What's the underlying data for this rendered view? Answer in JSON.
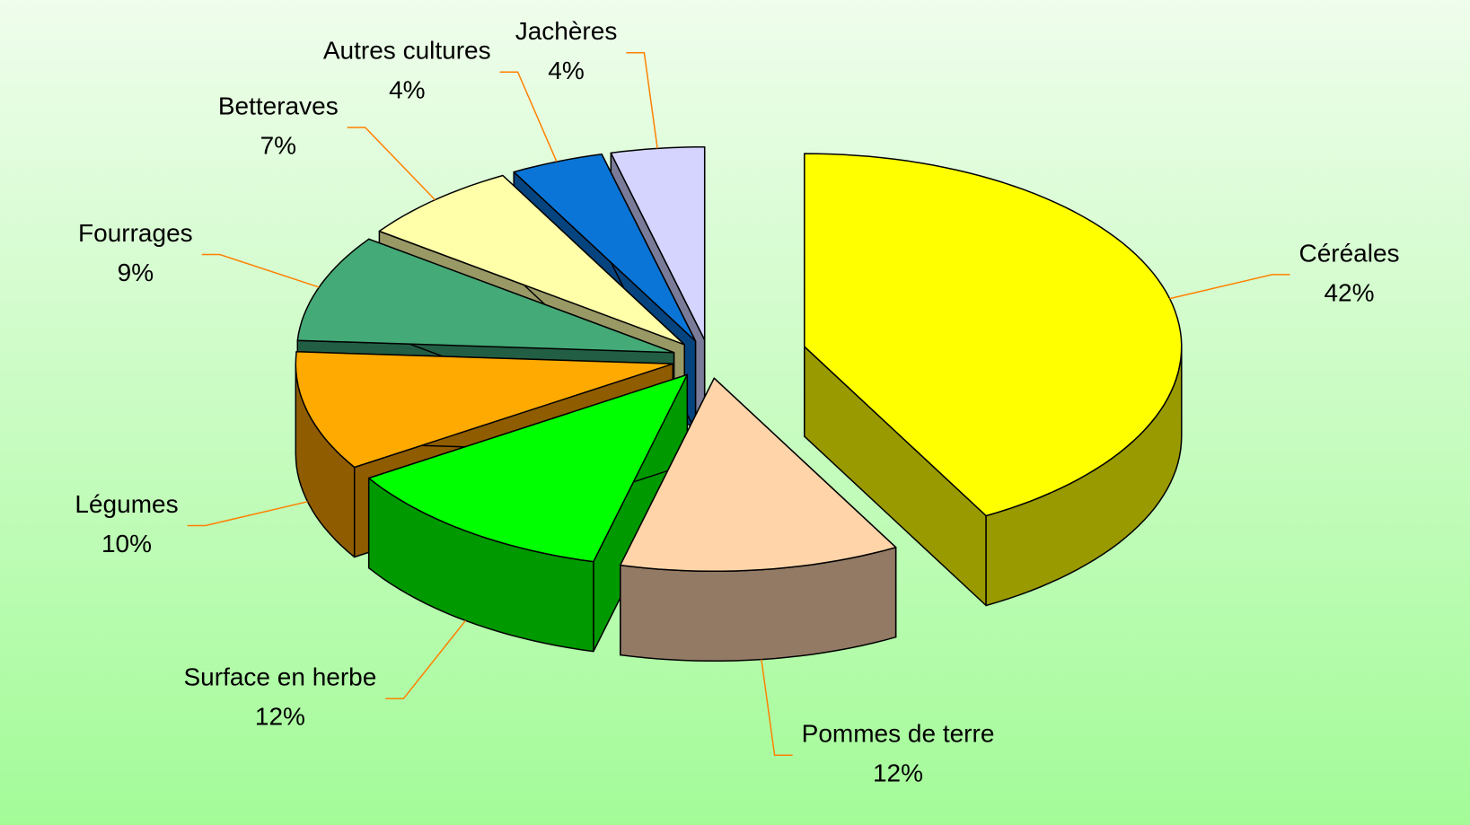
{
  "chart_data": {
    "type": "pie",
    "categories": [
      "Céréales",
      "Pommes de terre",
      "Surface en herbe",
      "Légumes",
      "Fourrages",
      "Betteraves",
      "Autres cultures",
      "Jachères"
    ],
    "values": [
      42,
      12,
      12,
      10,
      9,
      7,
      4,
      4
    ],
    "value_labels": [
      "42%",
      "12%",
      "12%",
      "10%",
      "9%",
      "7%",
      "4%",
      "4%"
    ],
    "colors": [
      "#ffff00",
      "#ffd4a8",
      "#00ff00",
      "#ffaa00",
      "#44aa77",
      "#ffffaa",
      "#0a75d6",
      "#d4d4ff"
    ],
    "side_colors": [
      "#999900",
      "#937a64",
      "#009900",
      "#8f5c00",
      "#225e44",
      "#999966",
      "#064480",
      "#7a7a99"
    ],
    "leader_color": "#ff8000"
  }
}
